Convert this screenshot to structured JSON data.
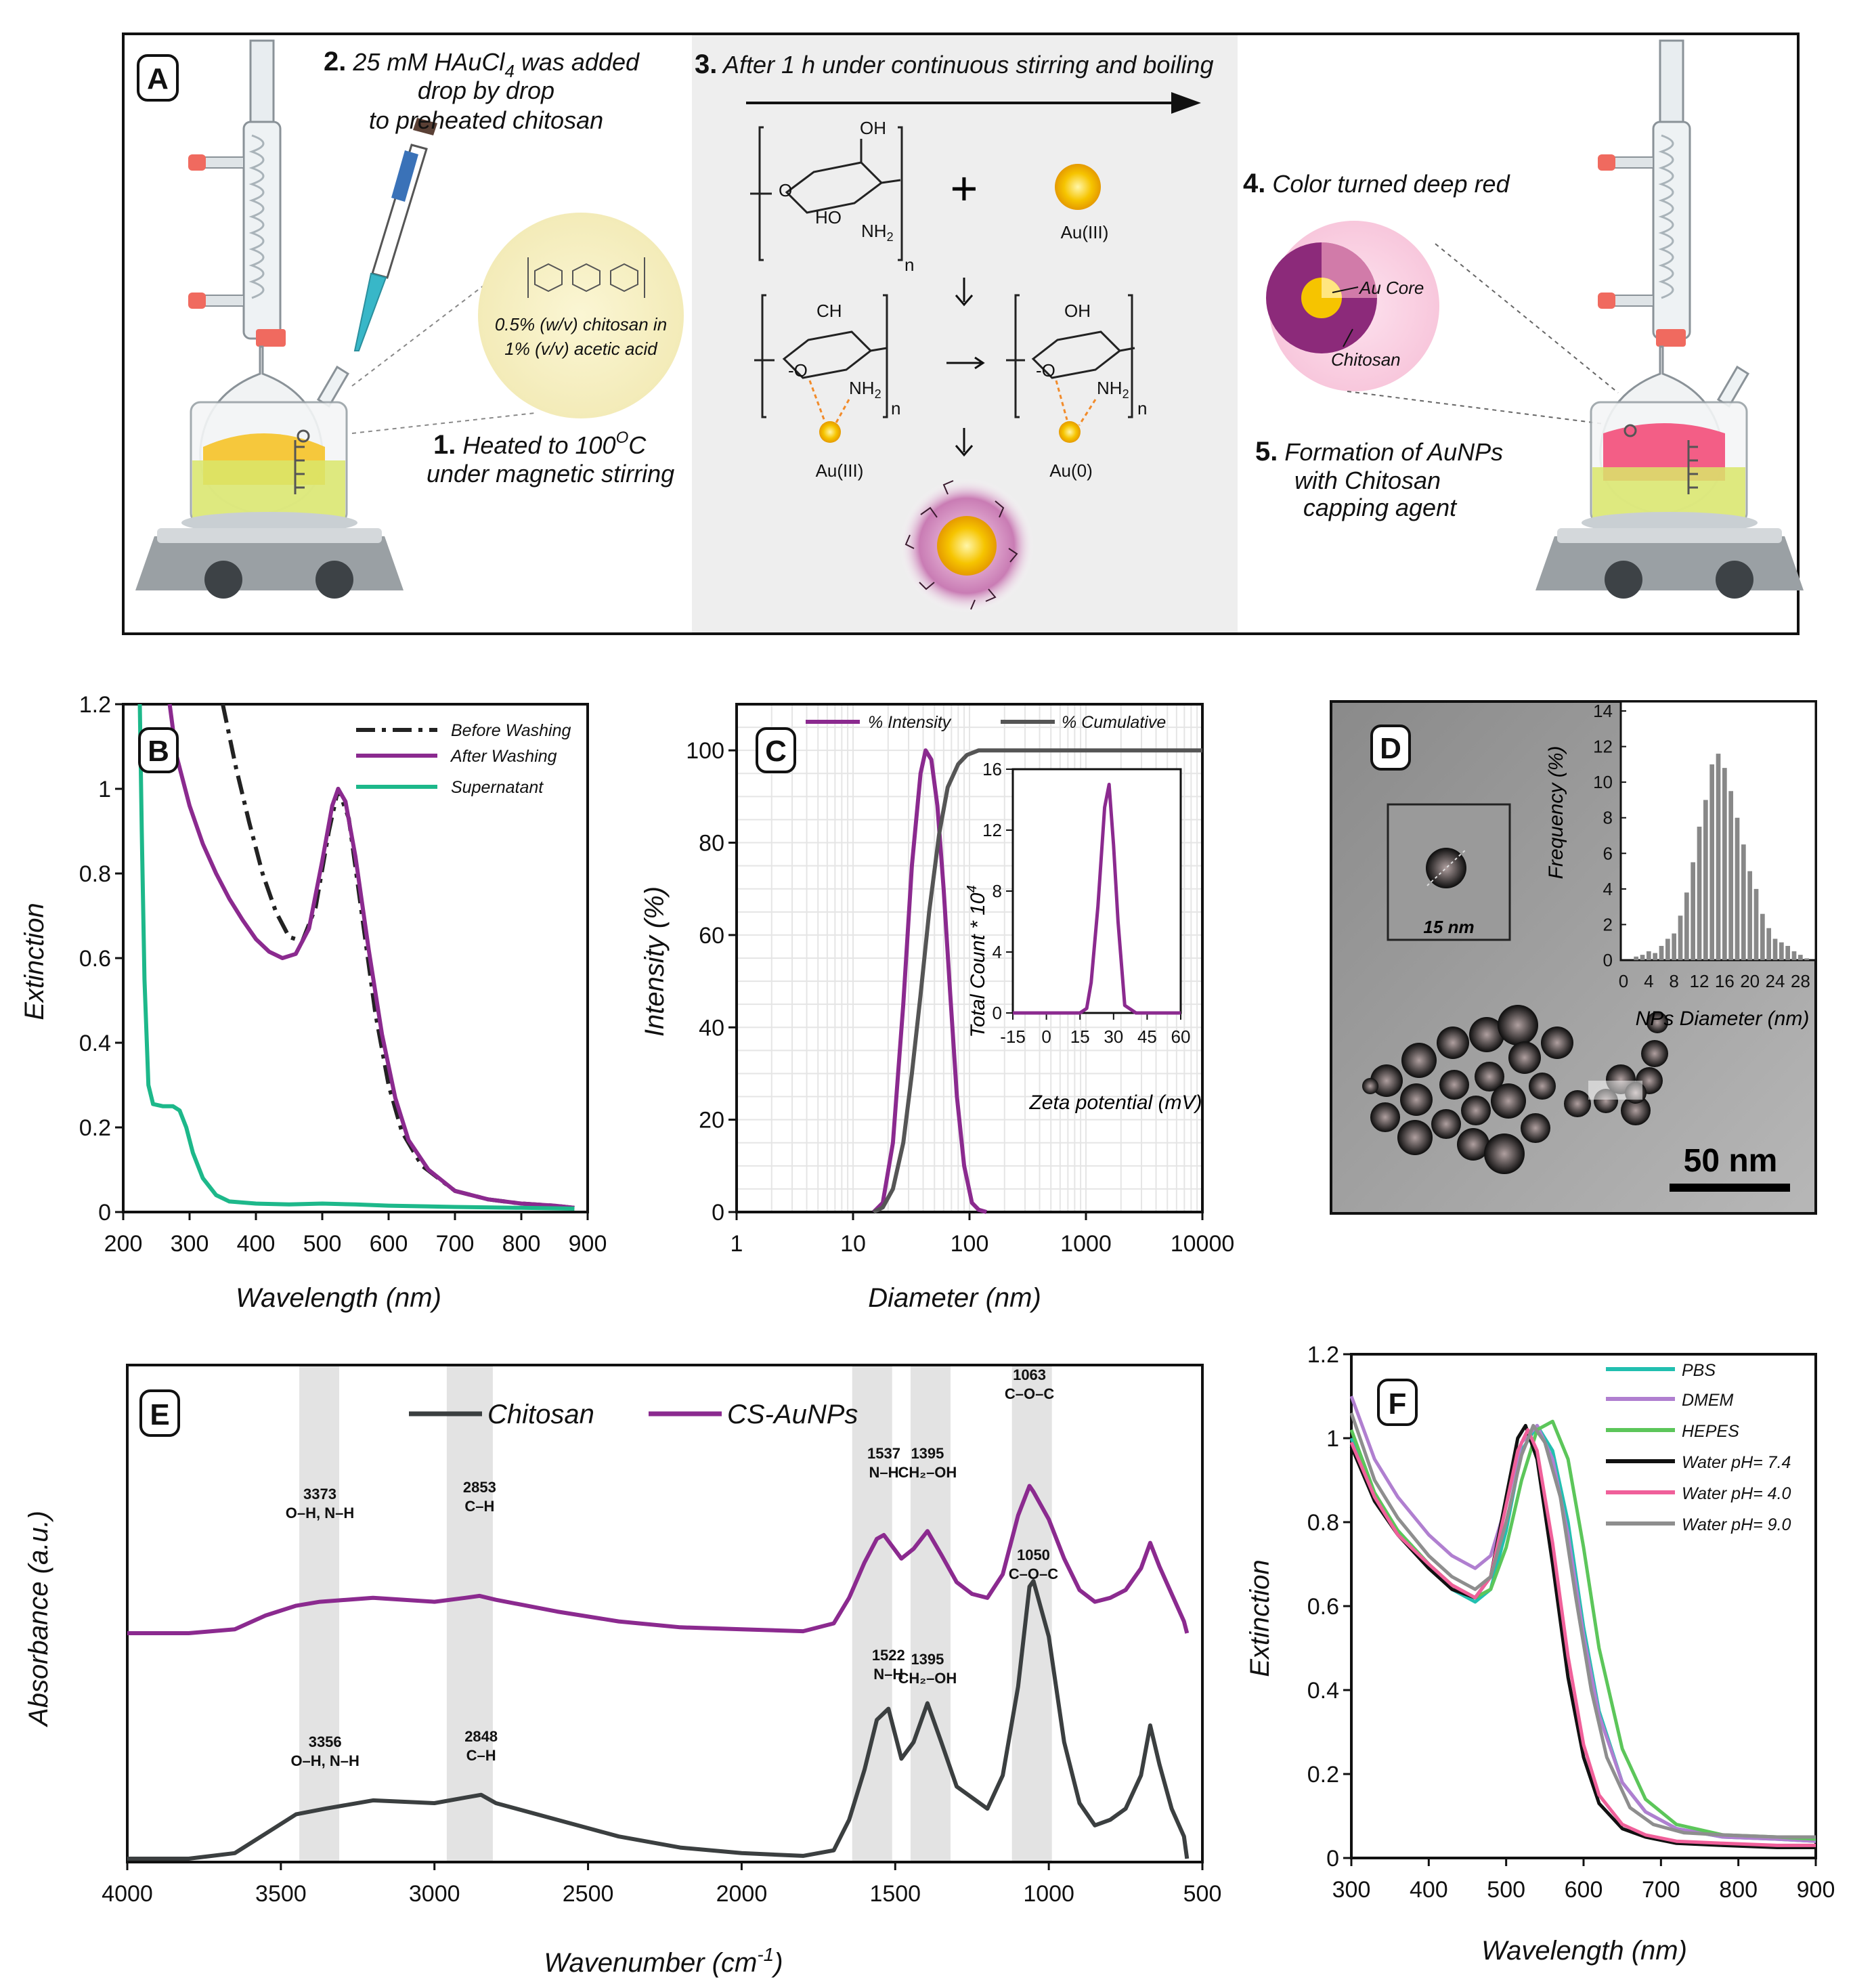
{
  "panel_labels": {
    "a": "A",
    "b": "B",
    "c": "C",
    "d": "D",
    "e": "E",
    "f": "F"
  },
  "schematic": {
    "step1_num": "1.",
    "step1_line1": "Heated to 100",
    "step1_sup": "O",
    "step1_line1_end": "C",
    "step1_line2": "under magnetic stirring",
    "step2_num": "2.",
    "step2_line1": "25 mM HAuCl",
    "step2_sub": "4",
    "step2_line1_end": " was added",
    "step2_line2": "drop by drop",
    "step2_line3": "to preheated chitosan",
    "step3_num": "3.",
    "step3_text": "After 1 h under continuous stirring and boiling",
    "step4_num": "4.",
    "step4_text": "Color turned deep red",
    "step5_num": "5.",
    "step5_line1": "Formation of AuNPs",
    "step5_line2": "with Chitosan",
    "step5_line3": "capping agent",
    "bubble_line1": "0.5% (w/v) chitosan in",
    "bubble_line2": "1% (v/v) acetic acid",
    "au_core": "Au Core",
    "chitosan_label": "Chitosan",
    "plus": "+",
    "au3_a": "Au(III)",
    "au3_b": "Au(III)",
    "au0": "Au(0)",
    "oh_a": "OH",
    "ho_a": "HO",
    "nh2_a": "NH",
    "nh2_sub": "2",
    "n_a": "n",
    "o_a": "O",
    "ch_b": "CH",
    "o_b": "-O",
    "nh2_b": "NH",
    "n_b": "n",
    "oh_c": "OH",
    "o_c": "-O",
    "nh2_c": "NH",
    "n_c": "n"
  },
  "colors": {
    "purple": "#8B2A8F",
    "dark": "#3B3F40",
    "green": "#1DB88A",
    "black": "#222222",
    "gray_band": "#E3E3E3"
  },
  "chart_data": [
    {
      "id": "B",
      "type": "line",
      "xlabel": "Wavelength (nm)",
      "ylabel": "Extinction",
      "xlim": [
        200,
        900
      ],
      "ylim": [
        0,
        1.2
      ],
      "xticks": [
        "200",
        "300",
        "400",
        "500",
        "600",
        "700",
        "800",
        "900"
      ],
      "yticks": [
        "0",
        "0.2",
        "0.4",
        "0.6",
        "0.8",
        "1",
        "1.2"
      ],
      "legend": [
        "Before Washing",
        "After Washing",
        "Supernatant"
      ],
      "series": [
        {
          "name": "Before Washing",
          "x": [
            350,
            370,
            390,
            410,
            430,
            450,
            470,
            490,
            510,
            524,
            540,
            560,
            580,
            600,
            620,
            650,
            700,
            750,
            800,
            850,
            880
          ],
          "y": [
            1.2,
            1.05,
            0.92,
            0.8,
            0.71,
            0.65,
            0.64,
            0.72,
            0.9,
            1.0,
            0.93,
            0.7,
            0.47,
            0.3,
            0.19,
            0.11,
            0.05,
            0.03,
            0.02,
            0.015,
            0.01
          ]
        },
        {
          "name": "After Washing",
          "x": [
            270,
            280,
            300,
            320,
            340,
            360,
            380,
            400,
            420,
            440,
            460,
            480,
            500,
            515,
            524,
            535,
            550,
            570,
            590,
            610,
            630,
            660,
            700,
            750,
            800,
            850,
            880
          ],
          "y": [
            1.2,
            1.08,
            0.96,
            0.87,
            0.8,
            0.74,
            0.69,
            0.645,
            0.615,
            0.6,
            0.61,
            0.67,
            0.83,
            0.96,
            1.0,
            0.97,
            0.84,
            0.62,
            0.42,
            0.27,
            0.17,
            0.1,
            0.05,
            0.03,
            0.02,
            0.015,
            0.01
          ]
        },
        {
          "name": "Supernatant",
          "x": [
            225,
            228,
            232,
            238,
            245,
            260,
            275,
            285,
            295,
            305,
            320,
            340,
            360,
            400,
            450,
            500,
            550,
            600,
            700,
            800,
            880
          ],
          "y": [
            1.2,
            0.9,
            0.55,
            0.3,
            0.255,
            0.25,
            0.25,
            0.24,
            0.2,
            0.14,
            0.08,
            0.04,
            0.025,
            0.02,
            0.018,
            0.02,
            0.018,
            0.015,
            0.012,
            0.01,
            0.008
          ]
        }
      ]
    },
    {
      "id": "C",
      "type": "line",
      "xlabel": "Diameter (nm)",
      "ylabel": "Intensity (%)",
      "xscale": "log",
      "xlim": [
        1,
        10000
      ],
      "ylim": [
        0,
        110
      ],
      "xticks": [
        "1",
        "10",
        "100",
        "1000",
        "10000"
      ],
      "yticks": [
        "0",
        "20",
        "40",
        "60",
        "80",
        "100"
      ],
      "legend": [
        "% Intensity",
        "% Cumulative"
      ],
      "series": [
        {
          "name": "% Intensity",
          "x": [
            15,
            18,
            22,
            27,
            32,
            38,
            42,
            47,
            53,
            60,
            68,
            78,
            90,
            105,
            120,
            140
          ],
          "y": [
            0,
            2,
            15,
            45,
            75,
            95,
            100,
            98,
            88,
            70,
            48,
            25,
            10,
            2,
            0.5,
            0
          ]
        },
        {
          "name": "% Cumulative",
          "x": [
            15,
            18,
            22,
            27,
            32,
            38,
            45,
            55,
            65,
            80,
            95,
            120,
            200,
            1000,
            10000
          ],
          "y": [
            0,
            1,
            5,
            15,
            30,
            47,
            65,
            82,
            92,
            97,
            99,
            100,
            100,
            100,
            100
          ]
        }
      ],
      "inset": {
        "xlabel": "Zeta potential (mV)",
        "ylabel": "Total Count * 10",
        "ylabel_sup": "4",
        "xlim": [
          -15,
          60
        ],
        "ylim": [
          0,
          16
        ],
        "xticks": [
          "-15",
          "0",
          "15",
          "30",
          "45",
          "60"
        ],
        "yticks": [
          "0",
          "4",
          "8",
          "12",
          "16"
        ],
        "x": [
          -15,
          15,
          18,
          20,
          23,
          26,
          28,
          30,
          32,
          35,
          40,
          60
        ],
        "y": [
          0,
          0,
          0.3,
          2,
          7,
          13.5,
          15,
          11,
          6,
          0.5,
          0,
          0
        ]
      }
    },
    {
      "id": "D",
      "type": "bar",
      "xlabel": "NPs Diameter (nm)",
      "ylabel": "Frequency (%)",
      "xlim": [
        0,
        30
      ],
      "ylim": [
        0,
        14
      ],
      "xticks": [
        "0",
        "4",
        "8",
        "12",
        "16",
        "20",
        "24",
        "28"
      ],
      "yticks": [
        "0",
        "2",
        "4",
        "6",
        "8",
        "10",
        "12",
        "14"
      ],
      "x": [
        2,
        3,
        4,
        5,
        6,
        7,
        8,
        9,
        10,
        11,
        12,
        13,
        14,
        15,
        16,
        17,
        18,
        19,
        20,
        21,
        22,
        23,
        24,
        25,
        26,
        27,
        28,
        29
      ],
      "values": [
        0.2,
        0.3,
        0.5,
        0.4,
        0.8,
        1.2,
        1.5,
        2.5,
        3.8,
        5.5,
        7.5,
        9,
        11,
        11.6,
        10.8,
        9.5,
        8,
        6.5,
        5,
        4,
        2.6,
        1.8,
        1.2,
        1,
        0.8,
        0.5,
        0.3,
        0.1
      ],
      "image_caption": "15 nm",
      "scale_bar": "50 nm"
    },
    {
      "id": "E",
      "type": "line",
      "xlabel": "Wavenumber (cm",
      "xlabel_sup": "-1",
      "xlabel_end": ")",
      "ylabel": "Absorbance (a.u.)",
      "xlim": [
        4000,
        500
      ],
      "reversed_x": true,
      "xticks": [
        "4000",
        "3500",
        "3000",
        "2500",
        "2000",
        "1500",
        "1000",
        "500"
      ],
      "legend": [
        "Chitosan",
        "CS-AuNPs"
      ],
      "bands": [
        [
          3440,
          3310
        ],
        [
          2960,
          2810
        ],
        [
          1640,
          1510
        ],
        [
          1450,
          1320
        ],
        [
          1120,
          990
        ]
      ],
      "annotations": {
        "cs": [
          {
            "num": "3356",
            "lbl": "O–H, N–H"
          },
          {
            "num": "2848",
            "lbl": "C–H"
          },
          {
            "num": "1522",
            "lbl": "N–H"
          },
          {
            "num": "1395",
            "lbl": "CH₂–OH"
          },
          {
            "num": "1050",
            "lbl": "C–O–C"
          }
        ],
        "au": [
          {
            "num": "3373",
            "lbl": "O–H, N–H"
          },
          {
            "num": "2853",
            "lbl": "C–H"
          },
          {
            "num": "1537",
            "lbl": "N–H"
          },
          {
            "num": "1395",
            "lbl": "CH₂–OH"
          },
          {
            "num": "1063",
            "lbl": "C–O–C"
          }
        ]
      },
      "series": [
        {
          "name": "Chitosan",
          "x": [
            4000,
            3800,
            3650,
            3550,
            3450,
            3356,
            3200,
            3000,
            2900,
            2848,
            2800,
            2600,
            2400,
            2200,
            2000,
            1800,
            1700,
            1650,
            1600,
            1560,
            1522,
            1480,
            1440,
            1395,
            1350,
            1300,
            1250,
            1200,
            1150,
            1100,
            1063,
            1050,
            1000,
            950,
            900,
            850,
            800,
            750,
            700,
            670,
            640,
            600,
            560,
            550
          ],
          "y": [
            0.0,
            0.0,
            0.02,
            0.09,
            0.16,
            0.18,
            0.21,
            0.2,
            0.22,
            0.23,
            0.2,
            0.14,
            0.08,
            0.04,
            0.02,
            0.01,
            0.03,
            0.14,
            0.32,
            0.5,
            0.54,
            0.36,
            0.42,
            0.56,
            0.42,
            0.26,
            0.22,
            0.18,
            0.3,
            0.62,
            0.98,
            1.0,
            0.8,
            0.42,
            0.2,
            0.12,
            0.14,
            0.18,
            0.3,
            0.48,
            0.34,
            0.18,
            0.08,
            0.0
          ]
        },
        {
          "name": "CS-AuNPs",
          "x": [
            4000,
            3800,
            3650,
            3550,
            3450,
            3373,
            3200,
            3000,
            2900,
            2853,
            2800,
            2600,
            2400,
            2200,
            2000,
            1800,
            1700,
            1650,
            1600,
            1560,
            1537,
            1480,
            1440,
            1395,
            1350,
            1300,
            1250,
            1200,
            1150,
            1100,
            1063,
            1050,
            1000,
            950,
            900,
            850,
            800,
            750,
            700,
            670,
            640,
            600,
            560,
            550
          ],
          "y": [
            0.0,
            0.0,
            0.02,
            0.09,
            0.14,
            0.16,
            0.18,
            0.16,
            0.18,
            0.19,
            0.17,
            0.11,
            0.06,
            0.03,
            0.02,
            0.01,
            0.05,
            0.18,
            0.36,
            0.48,
            0.5,
            0.38,
            0.43,
            0.52,
            0.4,
            0.26,
            0.2,
            0.18,
            0.3,
            0.6,
            0.75,
            0.72,
            0.58,
            0.38,
            0.22,
            0.16,
            0.18,
            0.22,
            0.33,
            0.46,
            0.34,
            0.2,
            0.06,
            0.0
          ]
        }
      ]
    },
    {
      "id": "F",
      "type": "line",
      "xlabel": "Wavelength (nm)",
      "ylabel": "Extinction",
      "xlim": [
        300,
        900
      ],
      "ylim": [
        0,
        1.2
      ],
      "xticks": [
        "300",
        "400",
        "500",
        "600",
        "700",
        "800",
        "900"
      ],
      "yticks": [
        "0",
        "0.2",
        "0.4",
        "0.6",
        "0.8",
        "1",
        "1.2"
      ],
      "legend": [
        "PBS",
        "DMEM",
        "HEPES",
        "Water pH= 7.4",
        "Water pH= 4.0",
        "Water pH= 9.0"
      ],
      "series": [
        {
          "name": "PBS",
          "x": [
            300,
            330,
            360,
            400,
            430,
            460,
            480,
            500,
            520,
            540,
            560,
            580,
            600,
            620,
            650,
            680,
            720,
            780,
            850,
            900
          ],
          "y": [
            1.0,
            0.86,
            0.78,
            0.7,
            0.64,
            0.61,
            0.64,
            0.78,
            0.97,
            1.03,
            0.97,
            0.8,
            0.55,
            0.35,
            0.18,
            0.11,
            0.07,
            0.05,
            0.045,
            0.04
          ]
        },
        {
          "name": "DMEM",
          "x": [
            300,
            330,
            360,
            400,
            430,
            460,
            480,
            500,
            520,
            540,
            560,
            580,
            600,
            620,
            650,
            680,
            720,
            780,
            850,
            900
          ],
          "y": [
            1.1,
            0.95,
            0.86,
            0.77,
            0.72,
            0.69,
            0.72,
            0.84,
            0.99,
            1.03,
            0.95,
            0.77,
            0.53,
            0.34,
            0.18,
            0.11,
            0.07,
            0.05,
            0.045,
            0.04
          ]
        },
        {
          "name": "HEPES",
          "x": [
            300,
            330,
            360,
            400,
            430,
            460,
            480,
            500,
            520,
            540,
            560,
            580,
            600,
            620,
            650,
            680,
            720,
            780,
            850,
            900
          ],
          "y": [
            1.02,
            0.87,
            0.78,
            0.7,
            0.65,
            0.62,
            0.64,
            0.74,
            0.9,
            1.02,
            1.04,
            0.95,
            0.74,
            0.5,
            0.26,
            0.14,
            0.08,
            0.055,
            0.05,
            0.045
          ]
        },
        {
          "name": "Water pH= 7.4",
          "x": [
            300,
            330,
            360,
            400,
            430,
            460,
            480,
            500,
            515,
            525,
            540,
            560,
            580,
            600,
            620,
            650,
            680,
            720,
            780,
            850,
            900
          ],
          "y": [
            0.98,
            0.85,
            0.77,
            0.69,
            0.64,
            0.62,
            0.67,
            0.86,
            1.0,
            1.03,
            0.95,
            0.7,
            0.43,
            0.24,
            0.13,
            0.07,
            0.05,
            0.035,
            0.03,
            0.025,
            0.025
          ]
        },
        {
          "name": "Water pH= 4.0",
          "x": [
            300,
            330,
            360,
            400,
            430,
            460,
            480,
            500,
            515,
            528,
            540,
            560,
            580,
            600,
            620,
            650,
            680,
            720,
            780,
            850,
            900
          ],
          "y": [
            0.99,
            0.86,
            0.77,
            0.7,
            0.65,
            0.62,
            0.67,
            0.84,
            0.97,
            1.02,
            0.97,
            0.75,
            0.48,
            0.27,
            0.15,
            0.08,
            0.055,
            0.04,
            0.035,
            0.03,
            0.03
          ]
        },
        {
          "name": "Water pH= 9.0",
          "x": [
            300,
            330,
            360,
            400,
            430,
            460,
            480,
            500,
            520,
            535,
            550,
            570,
            590,
            610,
            630,
            660,
            690,
            730,
            780,
            850,
            900
          ],
          "y": [
            1.06,
            0.9,
            0.81,
            0.72,
            0.67,
            0.64,
            0.67,
            0.8,
            0.96,
            1.03,
            0.99,
            0.86,
            0.62,
            0.4,
            0.24,
            0.12,
            0.08,
            0.06,
            0.055,
            0.05,
            0.05
          ]
        }
      ]
    }
  ]
}
